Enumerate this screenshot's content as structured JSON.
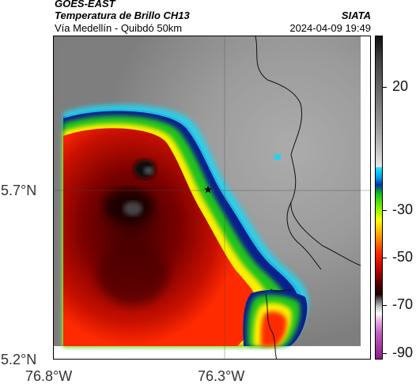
{
  "header": {
    "product": "GOES-EAST",
    "subtitle": "Temperatura de Brillo CH13",
    "organization": "SIATA",
    "area": "Vía Medellín - Quibdó 50km",
    "timestamp": "2024-04-09 19:49"
  },
  "axes": {
    "lat_labels": [
      "5.7°N",
      "5.2°N"
    ],
    "lon_labels": [
      "76.8°W",
      "76.3°W"
    ]
  },
  "colorbar": {
    "labels": [
      "20",
      "-30",
      "-50",
      "-70",
      "-90"
    ],
    "unit_note": ""
  },
  "map": {
    "marker": "star",
    "colors": {
      "warm_gray": "#9a9a9a",
      "cloud_red": "#c81000",
      "cloud_darkred": "#5a0000",
      "edge_green": "#22c21e",
      "edge_yellow": "#ffee00",
      "edge_cyan": "#22d4f0",
      "edge_blue": "#0a1f8f"
    }
  }
}
